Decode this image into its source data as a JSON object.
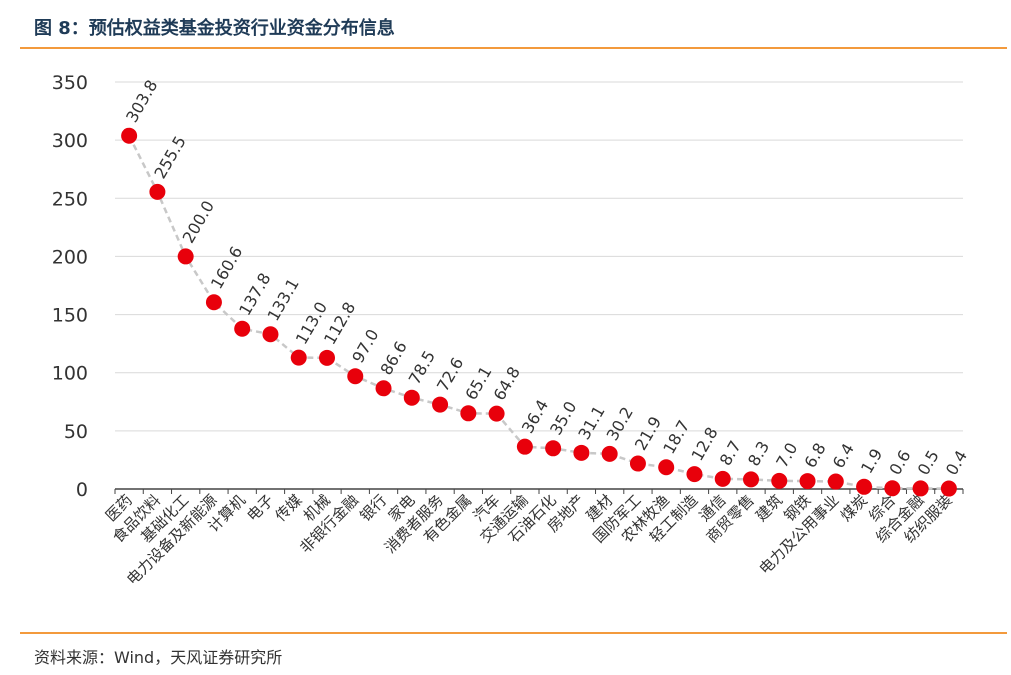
{
  "header": {
    "title": "图 8：预估权益类基金投资行业资金分布信息"
  },
  "footer": {
    "source": "资料来源：Wind，天风证券研究所"
  },
  "colors": {
    "accent": "#f39a3c",
    "marker": "#e8000b",
    "line": "#c8c8c8"
  },
  "chart_data": {
    "type": "line",
    "markers": true,
    "line_style": "dashed",
    "grid": true,
    "legend": "none",
    "ylim": [
      0,
      350
    ],
    "yticks": [
      0,
      50,
      100,
      150,
      200,
      250,
      300,
      350
    ],
    "ytick_labels": [
      "0",
      "50",
      "100",
      "150",
      "200",
      "250",
      "300",
      "350"
    ],
    "categories": [
      "医药",
      "食品饮料",
      "基础化工",
      "电力设备及新能源",
      "计算机",
      "电子",
      "传媒",
      "机械",
      "非银行金融",
      "银行",
      "家电",
      "消费者服务",
      "有色金属",
      "汽车",
      "交通运输",
      "石油石化",
      "房地产",
      "建材",
      "国防军工",
      "农林牧渔",
      "轻工制造",
      "通信",
      "商贸零售",
      "建筑",
      "钢铁",
      "电力及公用事业",
      "煤炭",
      "综合",
      "综合金融",
      "纺织服装"
    ],
    "values": [
      303.8,
      255.5,
      200.0,
      160.6,
      137.8,
      133.1,
      113.0,
      112.8,
      97.0,
      86.6,
      78.5,
      72.6,
      65.1,
      64.8,
      36.4,
      35.0,
      31.1,
      30.2,
      21.9,
      18.7,
      12.8,
      8.7,
      8.3,
      7.0,
      6.8,
      6.4,
      1.9,
      0.6,
      0.5,
      0.4
    ],
    "value_labels": [
      "303.8",
      "255.5",
      "200.0",
      "160.6",
      "137.8",
      "133.1",
      "113.0",
      "112.8",
      "97.0",
      "86.6",
      "78.5",
      "72.6",
      "65.1",
      "64.8",
      "36.4",
      "35.0",
      "31.1",
      "30.2",
      "21.9",
      "18.7",
      "12.8",
      "8.7",
      "8.3",
      "7.0",
      "6.8",
      "6.4",
      "1.9",
      "0.6",
      "0.5",
      "0.4"
    ]
  }
}
